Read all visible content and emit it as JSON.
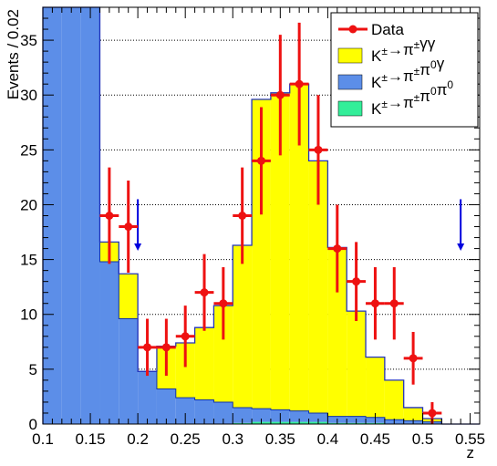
{
  "chart_data": {
    "type": "histogram",
    "xlabel": "z",
    "ylabel": "Events / 0.02",
    "xlim": [
      0.1,
      0.56
    ],
    "ylim": [
      0,
      38
    ],
    "x_ticks": [
      "0.1",
      "0.15",
      "0.2",
      "0.25",
      "0.3",
      "0.35",
      "0.4",
      "0.45",
      "0.5",
      "0.55"
    ],
    "x_tick_values": [
      0.1,
      0.15,
      0.2,
      0.25,
      0.3,
      0.35,
      0.4,
      0.45,
      0.5,
      0.55
    ],
    "y_ticks": [
      "0",
      "5",
      "10",
      "15",
      "20",
      "25",
      "30",
      "35"
    ],
    "y_tick_values": [
      0,
      5,
      10,
      15,
      20,
      25,
      30,
      35
    ],
    "grid": "horizontal dotted at major y ticks",
    "legend_position": "top-right",
    "bin_edges": [
      0.1,
      0.12,
      0.14,
      0.16,
      0.18,
      0.2,
      0.22,
      0.24,
      0.26,
      0.28,
      0.3,
      0.32,
      0.34,
      0.36,
      0.38,
      0.4,
      0.42,
      0.44,
      0.46,
      0.48,
      0.5,
      0.52,
      0.54,
      0.56
    ],
    "stacks": [
      {
        "name": "K±→π±π0π0",
        "color": "#33ee99",
        "values": [
          0,
          0,
          0,
          0,
          0,
          0,
          0,
          0,
          0,
          0,
          0.1,
          0.2,
          0.2,
          0.2,
          0.2,
          0.1,
          0.1,
          0.1,
          0,
          0,
          0,
          0,
          0
        ]
      },
      {
        "name": "K±→π±π0γ",
        "color": "#5c8ee8",
        "values": [
          38,
          38,
          38,
          14.8,
          9.6,
          4.8,
          3.2,
          2.4,
          2.2,
          2.0,
          1.4,
          1.2,
          1.1,
          1.0,
          0.8,
          0.6,
          0.6,
          0.5,
          0.4,
          0.3,
          0.2,
          0,
          0
        ]
      },
      {
        "name": "K±→π±γγ",
        "color": "#ffff00",
        "values": [
          0,
          0,
          0,
          1.8,
          4.1,
          0,
          3.9,
          5.0,
          6.6,
          8.8,
          14.8,
          28.2,
          28.9,
          29.8,
          23.0,
          15.4,
          9.6,
          5.5,
          3.6,
          1.2,
          0.3,
          0,
          0
        ]
      }
    ],
    "total_values": [
      38,
      38,
      38,
      16.6,
      13.7,
      4.8,
      7.1,
      7.4,
      8.8,
      10.8,
      16.3,
      29.6,
      30.2,
      31.0,
      24.0,
      16.1,
      10.3,
      6.1,
      4.0,
      1.5,
      0.5,
      0,
      0
    ],
    "data": {
      "name": "Data",
      "color": "#ee1111",
      "points": [
        {
          "x": 0.17,
          "y": 19,
          "err": 4.4
        },
        {
          "x": 0.19,
          "y": 18,
          "err": 4.2
        },
        {
          "x": 0.21,
          "y": 7,
          "err": 2.6
        },
        {
          "x": 0.23,
          "y": 7,
          "err": 2.6
        },
        {
          "x": 0.25,
          "y": 8,
          "err": 2.8
        },
        {
          "x": 0.27,
          "y": 12,
          "err": 3.5
        },
        {
          "x": 0.29,
          "y": 11,
          "err": 3.3
        },
        {
          "x": 0.31,
          "y": 19,
          "err": 4.4
        },
        {
          "x": 0.33,
          "y": 24,
          "err": 4.9
        },
        {
          "x": 0.35,
          "y": 30,
          "err": 5.5
        },
        {
          "x": 0.37,
          "y": 31,
          "err": 5.6
        },
        {
          "x": 0.39,
          "y": 25,
          "err": 5.0
        },
        {
          "x": 0.41,
          "y": 16,
          "err": 4.0
        },
        {
          "x": 0.43,
          "y": 13,
          "err": 3.6
        },
        {
          "x": 0.45,
          "y": 11,
          "err": 3.3
        },
        {
          "x": 0.47,
          "y": 11,
          "err": 3.3
        },
        {
          "x": 0.49,
          "y": 6,
          "err": 2.4
        },
        {
          "x": 0.51,
          "y": 1,
          "err": 1.0
        }
      ]
    },
    "annotations": [
      {
        "type": "arrow-down",
        "x": 0.2,
        "y_top": 20.5,
        "y_bottom": 15.8,
        "color": "#0000dd"
      },
      {
        "type": "arrow-down",
        "x": 0.54,
        "y_top": 20.5,
        "y_bottom": 15.8,
        "color": "#0000dd"
      }
    ],
    "legend": [
      {
        "label_base": "Data",
        "label_sup": [],
        "kind": "marker",
        "color": "#ee1111"
      },
      {
        "label_parts": [
          [
            "K",
            false
          ],
          [
            "±",
            true
          ],
          [
            "→π",
            false
          ],
          [
            "±",
            true
          ],
          [
            "γγ",
            false
          ]
        ],
        "kind": "box",
        "color": "#ffff00"
      },
      {
        "label_parts": [
          [
            "K",
            false
          ],
          [
            "±",
            true
          ],
          [
            "→π",
            false
          ],
          [
            "±",
            true
          ],
          [
            "π",
            false
          ],
          [
            "0",
            true
          ],
          [
            "γ",
            false
          ]
        ],
        "kind": "box",
        "color": "#5c8ee8"
      },
      {
        "label_parts": [
          [
            "K",
            false
          ],
          [
            "±",
            true
          ],
          [
            "→π",
            false
          ],
          [
            "±",
            true
          ],
          [
            "π",
            false
          ],
          [
            "0",
            true
          ],
          [
            "π",
            false
          ],
          [
            "0",
            true
          ]
        ],
        "kind": "box",
        "color": "#33ee99"
      }
    ]
  }
}
